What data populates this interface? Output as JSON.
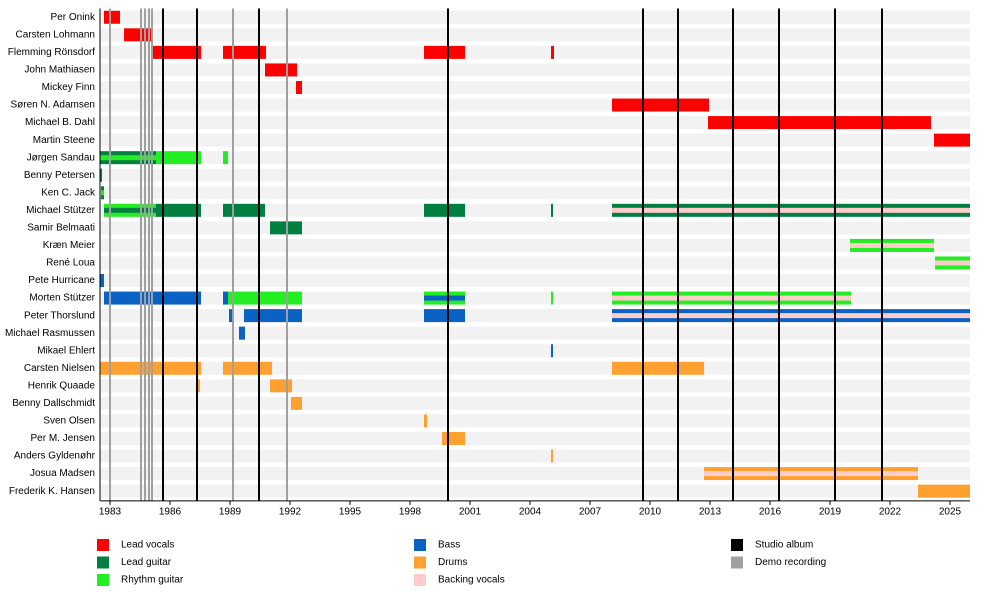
{
  "chart_data": {
    "type": "timeline",
    "xlim": [
      1982.5,
      2026
    ],
    "xticks": [
      1983,
      1986,
      1989,
      1992,
      1995,
      1998,
      2001,
      2004,
      2007,
      2010,
      2013,
      2016,
      2019,
      2022,
      2025
    ],
    "roles": [
      {
        "name": "Lead vocals",
        "color": "#ff0000"
      },
      {
        "name": "Lead guitar",
        "color": "#008040"
      },
      {
        "name": "Rhythm guitar",
        "color": "#22ee22"
      },
      {
        "name": "Bass",
        "color": "#0a62c4"
      },
      {
        "name": "Drums",
        "color": "#ffa030"
      },
      {
        "name": "Backing vocals",
        "color": "#ffcccc"
      }
    ],
    "studio_albums": {
      "name": "Studio album",
      "color": "#000000",
      "years": [
        1985.65,
        1987.35,
        1990.45,
        1999.9,
        2009.65,
        2011.4,
        2014.15,
        2016.45,
        2019.25,
        2021.6
      ]
    },
    "demo_recordings": {
      "name": "Demo recording",
      "color": "#a0a0a0",
      "years": [
        1983,
        1984.55,
        1984.75,
        1984.95,
        1985.1,
        1989.15,
        1991.85
      ]
    },
    "members": [
      {
        "name": "Per Onink",
        "spans": [
          {
            "role": 0,
            "start": 1982.7,
            "end": 1983.5
          }
        ]
      },
      {
        "name": "Carsten Lohmann",
        "spans": [
          {
            "role": 0,
            "start": 1983.7,
            "end": 1985.05
          }
        ]
      },
      {
        "name": "Flemming Rönsdorf",
        "spans": [
          {
            "role": 0,
            "start": 1985.05,
            "end": 1987.55
          },
          {
            "role": 0,
            "start": 1988.65,
            "end": 1990.8
          },
          {
            "role": 0,
            "start": 1998.7,
            "end": 2000.75
          },
          {
            "role": 0,
            "start": 2005.05,
            "end": 2005.2
          }
        ]
      },
      {
        "name": "John Mathiasen",
        "spans": [
          {
            "role": 0,
            "start": 1990.75,
            "end": 1992.35
          }
        ]
      },
      {
        "name": "Mickey Finn",
        "spans": [
          {
            "role": 0,
            "start": 1992.3,
            "end": 1992.6
          }
        ]
      },
      {
        "name": "Søren N. Adamsen",
        "spans": [
          {
            "role": 0,
            "start": 2008.1,
            "end": 2012.95
          }
        ]
      },
      {
        "name": "Michael B. Dahl",
        "spans": [
          {
            "role": 0,
            "start": 2012.9,
            "end": 2024.05
          }
        ]
      },
      {
        "name": "Martin Steene",
        "spans": [
          {
            "role": 0,
            "start": 2024.2,
            "end": 2026
          }
        ]
      },
      {
        "name": "Jørgen Sandau",
        "spans": [
          {
            "role": 1,
            "secondary": 2,
            "start": 1982.5,
            "end": 1985.3
          },
          {
            "role": 2,
            "start": 1985.3,
            "end": 1987.55
          },
          {
            "role": 2,
            "start": 1988.65,
            "end": 1988.9
          }
        ]
      },
      {
        "name": "Benny Petersen",
        "spans": [
          {
            "role": 1,
            "start": 1982.5,
            "end": 1982.6
          }
        ]
      },
      {
        "name": "Ken C. Jack",
        "spans": [
          {
            "role": 1,
            "secondary": 2,
            "start": 1982.55,
            "end": 1982.7
          }
        ]
      },
      {
        "name": "Michael Stützer",
        "spans": [
          {
            "role": 2,
            "secondary": 1,
            "start": 1982.7,
            "end": 1985.3
          },
          {
            "role": 1,
            "start": 1985.3,
            "end": 1987.55
          },
          {
            "role": 1,
            "start": 1988.65,
            "end": 1990.75
          },
          {
            "role": 1,
            "start": 1998.7,
            "end": 2000.75
          },
          {
            "role": 1,
            "start": 2005.05,
            "end": 2005.15
          },
          {
            "role": 1,
            "secondary": 5,
            "start": 2008.1,
            "end": 2026
          }
        ]
      },
      {
        "name": "Samir Belmaati",
        "spans": [
          {
            "role": 1,
            "start": 1991,
            "end": 1992.6
          }
        ]
      },
      {
        "name": "Kræn Meier",
        "spans": [
          {
            "role": 2,
            "secondary": 5,
            "start": 2020,
            "end": 2024.2
          }
        ]
      },
      {
        "name": "René Loua",
        "spans": [
          {
            "role": 2,
            "secondary": 5,
            "start": 2024.25,
            "end": 2026
          }
        ]
      },
      {
        "name": "Pete Hurricane",
        "spans": [
          {
            "role": 3,
            "start": 1982.5,
            "end": 1982.7
          }
        ]
      },
      {
        "name": "Morten Stützer",
        "spans": [
          {
            "role": 3,
            "start": 1982.7,
            "end": 1987.55
          },
          {
            "role": 3,
            "start": 1988.65,
            "end": 1988.9
          },
          {
            "role": 2,
            "start": 1988.9,
            "end": 1992.6
          },
          {
            "role": 2,
            "secondary": 3,
            "start": 1998.7,
            "end": 2000.75
          },
          {
            "role": 2,
            "start": 2005.05,
            "end": 2005.15
          },
          {
            "role": 2,
            "secondary": 5,
            "start": 2008.1,
            "end": 2020.05
          }
        ]
      },
      {
        "name": "Peter Thorslund",
        "spans": [
          {
            "role": 3,
            "start": 1988.95,
            "end": 1989.1
          },
          {
            "role": 3,
            "start": 1989.7,
            "end": 1992.6
          },
          {
            "role": 3,
            "start": 1998.7,
            "end": 2000.75
          },
          {
            "role": 3,
            "secondary": 5,
            "start": 2008.1,
            "end": 2026
          }
        ]
      },
      {
        "name": "Michael Rasmussen",
        "spans": [
          {
            "role": 3,
            "start": 1989.45,
            "end": 1989.75
          }
        ]
      },
      {
        "name": "Mikael Ehlert",
        "spans": [
          {
            "role": 3,
            "start": 2005.05,
            "end": 2005.15
          }
        ]
      },
      {
        "name": "Carsten Nielsen",
        "spans": [
          {
            "role": 4,
            "start": 1982.5,
            "end": 1987.55
          },
          {
            "role": 4,
            "start": 1988.65,
            "end": 1991.1
          },
          {
            "role": 4,
            "start": 2008.1,
            "end": 2012.7
          }
        ]
      },
      {
        "name": "Henrik Quaade",
        "spans": [
          {
            "role": 4,
            "start": 1987.4,
            "end": 1987.5
          },
          {
            "role": 4,
            "start": 1991,
            "end": 1992.1
          }
        ]
      },
      {
        "name": "Benny Dallschmidt",
        "spans": [
          {
            "role": 4,
            "start": 1992.05,
            "end": 1992.6
          }
        ]
      },
      {
        "name": "Sven Olsen",
        "spans": [
          {
            "role": 4,
            "start": 1998.7,
            "end": 1998.85
          }
        ]
      },
      {
        "name": "Per M. Jensen",
        "spans": [
          {
            "role": 4,
            "start": 1999.6,
            "end": 2000.75
          }
        ]
      },
      {
        "name": "Anders Gyldenøhr",
        "spans": [
          {
            "role": 4,
            "start": 2005.05,
            "end": 2005.15
          }
        ]
      },
      {
        "name": "Josua Madsen",
        "spans": [
          {
            "role": 4,
            "secondary": 5,
            "start": 2012.7,
            "end": 2023.4
          }
        ]
      },
      {
        "name": "Frederik K. Hansen",
        "spans": [
          {
            "role": 4,
            "start": 2023.4,
            "end": 2026
          }
        ]
      }
    ]
  }
}
